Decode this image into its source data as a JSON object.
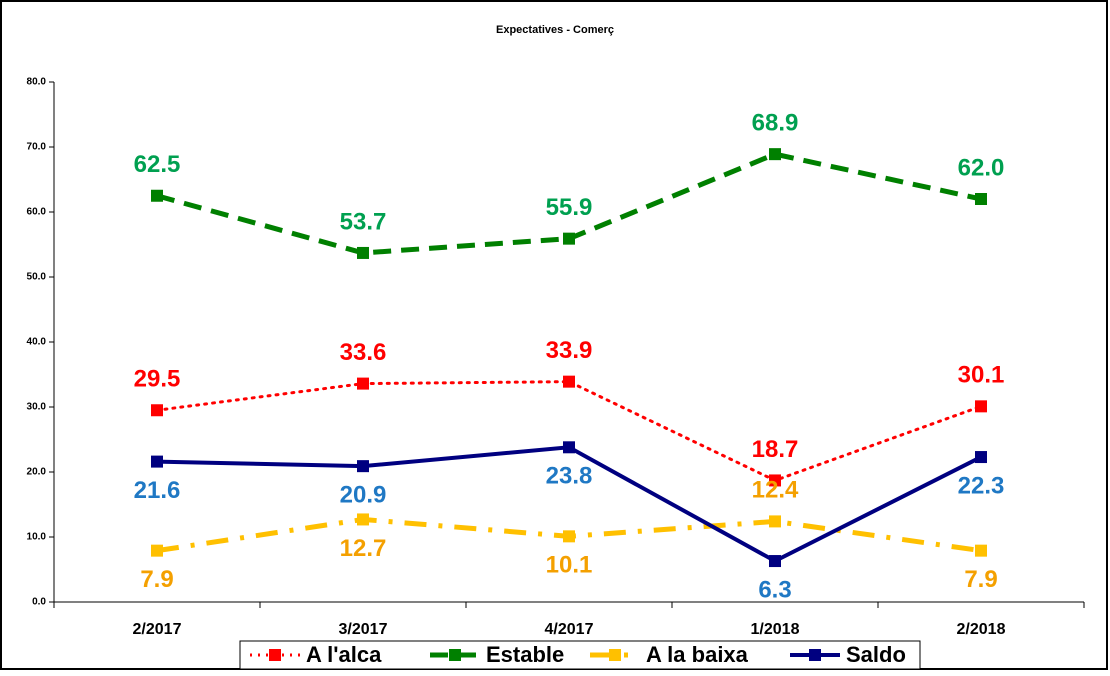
{
  "chart_data": {
    "type": "line",
    "title": "Expectatives - Comerç",
    "categories": [
      "2/2017",
      "3/2017",
      "4/2017",
      "1/2018",
      "2/2018"
    ],
    "series": [
      {
        "name": "A l'alca",
        "color": "#ff0000",
        "label_color": "#ff0000",
        "line_style": "dotted",
        "values": [
          29.5,
          33.6,
          33.9,
          18.7,
          30.1
        ],
        "value_labels": [
          "29.5",
          "33.6",
          "33.9",
          "18.7",
          "30.1"
        ]
      },
      {
        "name": "Estable",
        "color": "#008000",
        "label_color": "#00a050",
        "line_style": "dashed",
        "values": [
          62.5,
          53.7,
          55.9,
          68.9,
          62.0
        ],
        "value_labels": [
          "62.5",
          "53.7",
          "55.9",
          "68.9",
          "62.0"
        ]
      },
      {
        "name": "A la baixa",
        "color": "#ffc000",
        "label_color": "#f4a000",
        "line_style": "dashdot",
        "values": [
          7.9,
          12.7,
          10.1,
          12.4,
          7.9
        ],
        "value_labels": [
          "7.9",
          "12.7",
          "10.1",
          "12.4",
          "7.9"
        ]
      },
      {
        "name": "Saldo",
        "color": "#000080",
        "label_color": "#1f78c4",
        "line_style": "solid",
        "values": [
          21.6,
          20.9,
          23.8,
          6.3,
          22.3
        ],
        "value_labels": [
          "21.6",
          "20.9",
          "23.8",
          "6.3",
          "22.3"
        ]
      }
    ],
    "ylim": [
      0,
      80
    ],
    "yticks": [
      {
        "value": 0,
        "label": "0.0"
      },
      {
        "value": 10,
        "label": "10.0"
      },
      {
        "value": 20,
        "label": "20.0"
      },
      {
        "value": 30,
        "label": "30.0"
      },
      {
        "value": 40,
        "label": "40.0"
      },
      {
        "value": 50,
        "label": "50.0"
      },
      {
        "value": 60,
        "label": "60.0"
      },
      {
        "value": 70,
        "label": "70.0"
      },
      {
        "value": 80,
        "label": "80.0"
      }
    ],
    "grid": false,
    "legend": "bottom"
  }
}
